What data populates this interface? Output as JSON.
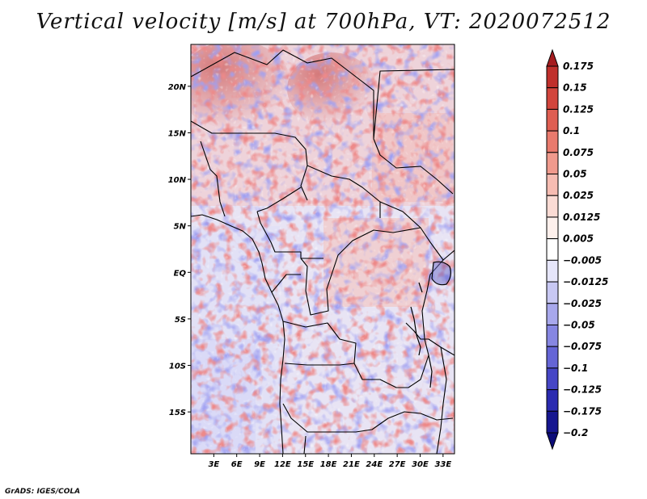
{
  "title": "Vertical velocity [m/s] at 700hPa, VT: 2020072512",
  "credit": "GrADS: IGES/COLA",
  "map": {
    "lat_labels": [
      "20N",
      "15N",
      "10N",
      "5N",
      "EQ",
      "5S",
      "10S",
      "15S"
    ],
    "lon_labels": [
      "3E",
      "6E",
      "9E",
      "12E",
      "15E",
      "18E",
      "21E",
      "24E",
      "27E",
      "30E",
      "33E"
    ],
    "lat_values": [
      20,
      15,
      10,
      5,
      0,
      -5,
      -10,
      -15
    ],
    "lon_values": [
      3,
      6,
      9,
      12,
      15,
      18,
      21,
      24,
      27,
      30,
      33
    ],
    "lon_range": [
      0,
      34.5
    ],
    "lat_range": [
      -19.5,
      24.5
    ]
  },
  "colorbar": {
    "labels": [
      "0.175",
      "0.15",
      "0.125",
      "0.1",
      "0.075",
      "0.05",
      "0.025",
      "0.0125",
      "0.005",
      "−0.005",
      "−0.0125",
      "−0.025",
      "−0.05",
      "−0.075",
      "−0.1",
      "−0.125",
      "−0.175",
      "−0.2"
    ],
    "colors": [
      "#a51c1f",
      "#c0302c",
      "#d2453c",
      "#df5e52",
      "#e97a6d",
      "#f09a8d",
      "#f6bcb2",
      "#fadbd4",
      "#fdf0ec",
      "#ffffff",
      "#e6e6fa",
      "#c8c8f3",
      "#a8a8ec",
      "#8686e2",
      "#6565d6",
      "#4646c6",
      "#2a2ab0",
      "#161690",
      "#0c0c78"
    ]
  }
}
